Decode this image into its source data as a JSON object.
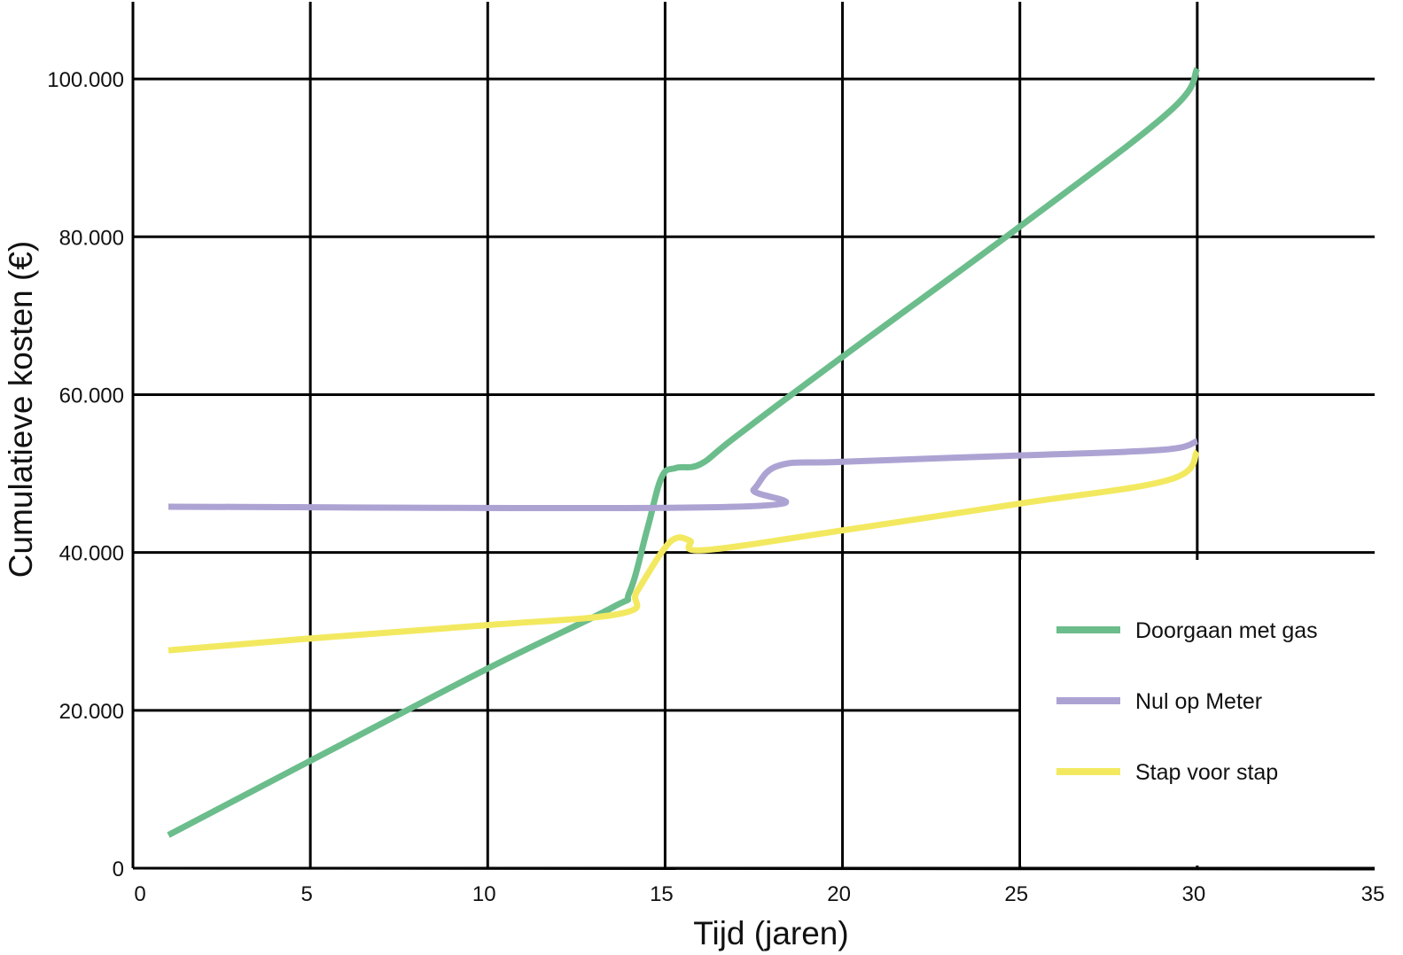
{
  "chart_data": {
    "type": "line",
    "xlabel": "Tijd (jaren)",
    "ylabel": "Cumulatieve kosten (€)",
    "xlim": [
      0,
      35
    ],
    "ylim": [
      0,
      110000
    ],
    "x_ticks": [
      0,
      5,
      10,
      15,
      20,
      25,
      30,
      35
    ],
    "y_ticks": [
      0,
      20000,
      40000,
      60000,
      80000,
      100000
    ],
    "x_tick_labels": [
      "0",
      "5",
      "10",
      "15",
      "20",
      "25",
      "30",
      "35"
    ],
    "y_tick_labels": [
      "0",
      "20.000",
      "40.000",
      "60.000",
      "80.000",
      "100.000"
    ],
    "grid": true,
    "legend_position": "bottom-right",
    "series": [
      {
        "name": "Doorgaan met gas",
        "color": "#6cbd8c",
        "points": [
          [
            1,
            4200
          ],
          [
            5,
            13600
          ],
          [
            10,
            25300
          ],
          [
            13.5,
            33000
          ],
          [
            14,
            35000
          ],
          [
            14.5,
            43000
          ],
          [
            14.9,
            49500
          ],
          [
            15.3,
            50700
          ],
          [
            16,
            51200
          ],
          [
            17,
            54700
          ],
          [
            20,
            64800
          ],
          [
            25,
            81300
          ],
          [
            29.2,
            95800
          ],
          [
            30,
            101300
          ]
        ]
      },
      {
        "name": "Nul op Meter",
        "color": "#ada3d3",
        "points": [
          [
            1,
            45800
          ],
          [
            17,
            45800
          ],
          [
            17.5,
            48000
          ],
          [
            18.2,
            51000
          ],
          [
            20,
            51500
          ],
          [
            25,
            52300
          ],
          [
            29,
            53000
          ],
          [
            30,
            54100
          ]
        ]
      },
      {
        "name": "Stap voor stap",
        "color": "#f3e960",
        "points": [
          [
            1,
            27600
          ],
          [
            5,
            29100
          ],
          [
            10,
            30800
          ],
          [
            13.8,
            32300
          ],
          [
            14.2,
            35000
          ],
          [
            14.9,
            40000
          ],
          [
            15.3,
            41800
          ],
          [
            15.7,
            41500
          ],
          [
            16.1,
            40300
          ],
          [
            20,
            42800
          ],
          [
            25,
            46200
          ],
          [
            29.2,
            49200
          ],
          [
            30,
            52800
          ]
        ]
      }
    ]
  }
}
